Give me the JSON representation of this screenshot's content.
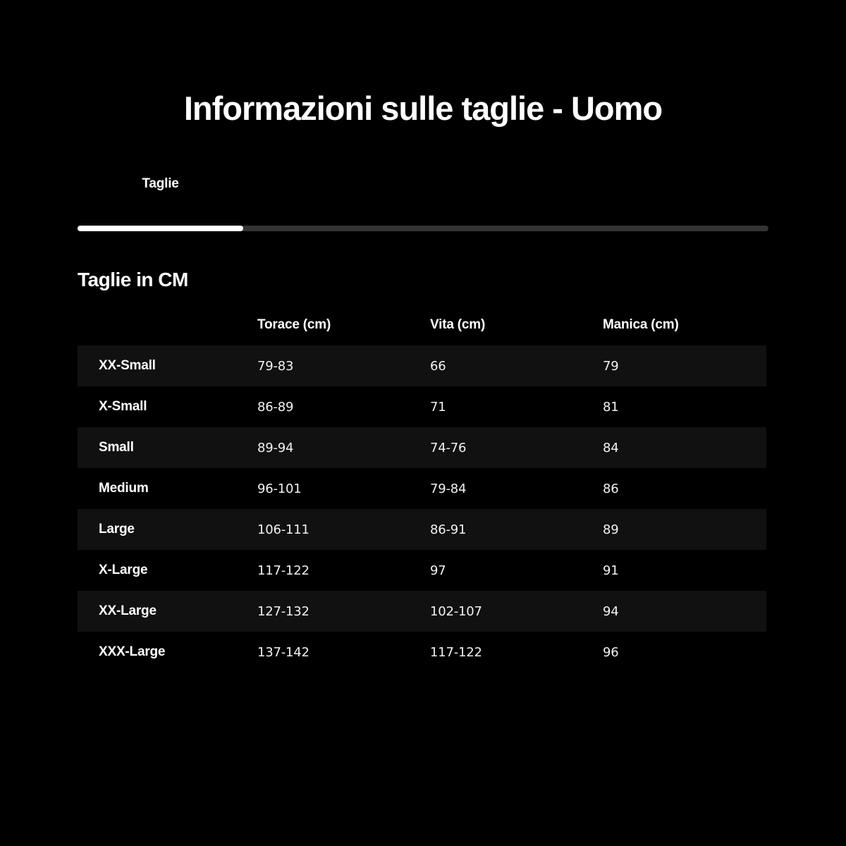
{
  "title": "Informazioni sulle taglie - Uomo",
  "tabs": {
    "taglie": {
      "label": "Taglie",
      "active": true
    }
  },
  "section": {
    "heading": "Taglie in CM"
  },
  "table": {
    "headers": [
      "",
      "Torace (cm)",
      "Vita (cm)",
      "Manica (cm)"
    ],
    "rows": [
      {
        "size": "XX-Small",
        "torace": "79-83",
        "vita": "66",
        "manica": "79"
      },
      {
        "size": "X-Small",
        "torace": "86-89",
        "vita": "71",
        "manica": "81"
      },
      {
        "size": "Small",
        "torace": "89-94",
        "vita": "74-76",
        "manica": "84"
      },
      {
        "size": "Medium",
        "torace": "96-101",
        "vita": "79-84",
        "manica": "86"
      },
      {
        "size": "Large",
        "torace": "106-111",
        "vita": "86-91",
        "manica": "89"
      },
      {
        "size": "X-Large",
        "torace": "117-122",
        "vita": "97",
        "manica": "91"
      },
      {
        "size": "XX-Large",
        "torace": "127-132",
        "vita": "102-107",
        "manica": "94"
      },
      {
        "size": "XXX-Large",
        "torace": "137-142",
        "vita": "117-122",
        "manica": "96"
      }
    ]
  },
  "colors": {
    "background": "#000000",
    "text": "#ffffff",
    "row_stripe": "#111111",
    "indicator_active": "#ffffff",
    "indicator_track": "#333333"
  }
}
